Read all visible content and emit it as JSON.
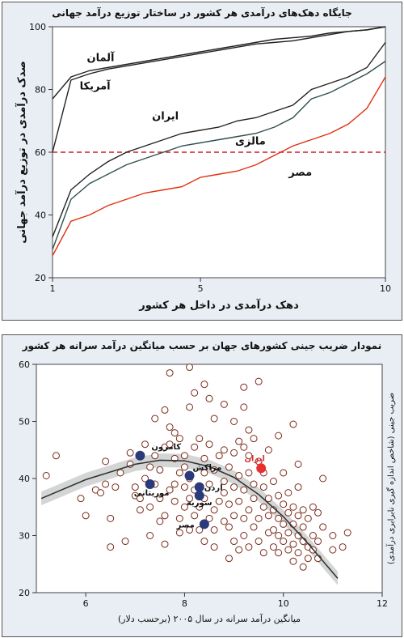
{
  "chart_data": [
    {
      "type": "line",
      "title": "جایگاه دهک‌های درآمدی هر کشور در ساختار توزیع درآمد جهانی",
      "xlabel": "دهک درآمدی در داخل هر کشور",
      "ylabel": "صدک درآمدی در توزیع درآمد جهانی",
      "xlim": [
        1,
        10
      ],
      "ylim": [
        20,
        100
      ],
      "xticks": [
        1,
        5,
        10
      ],
      "yticks": [
        20,
        40,
        60,
        80,
        100
      ],
      "x": [
        1,
        1.5,
        2,
        2.5,
        3,
        3.5,
        4,
        4.5,
        5,
        5.5,
        6,
        6.5,
        7,
        7.5,
        8,
        8.5,
        9,
        9.5,
        10
      ],
      "series": [
        {
          "name": "آلمان",
          "color": "#222222",
          "values": [
            77,
            84,
            86,
            87,
            88,
            89,
            90,
            91,
            92,
            93,
            94,
            95,
            96,
            96.5,
            97,
            98,
            98.5,
            99,
            100
          ]
        },
        {
          "name": "آمریکا",
          "color": "#222222",
          "values": [
            60,
            83,
            85,
            86.5,
            87.5,
            88.5,
            89.5,
            90.5,
            91.5,
            92.5,
            93.5,
            94.5,
            95,
            95.5,
            96.5,
            97.5,
            98.5,
            99,
            100
          ]
        },
        {
          "name": "ایران",
          "color": "#222222",
          "values": [
            33,
            48,
            53,
            57,
            60,
            62,
            64,
            66,
            67,
            68,
            70,
            71,
            73,
            75,
            80,
            82,
            84,
            87,
            95
          ]
        },
        {
          "name": "مالزی",
          "color": "#2f4f4f",
          "values": [
            29,
            45,
            50,
            53,
            56,
            58,
            60,
            62,
            63,
            64,
            65,
            66,
            68,
            71,
            77,
            79,
            82,
            85,
            89
          ]
        },
        {
          "name": "مصر",
          "color": "#e03010",
          "values": [
            27,
            38,
            40,
            43,
            45,
            47,
            48,
            49,
            52,
            53,
            54,
            56,
            59,
            62,
            64,
            66,
            69,
            74,
            84
          ]
        }
      ],
      "reference_line": {
        "y": 60,
        "style": "dashed",
        "color": "#cc2020"
      }
    },
    {
      "type": "scatter",
      "title": "نمودار ضریب جینی کشورهای جهان بر حسب میانگین درآمد سرانه هر کشور",
      "xlabel": "میانگین درآمد سرانه در سال ۲۰۰۵ (برحسب دلار)",
      "ylabel": "ضریب جینی (شاخص اندازه گیری نابرابری درآمدی)",
      "xlim": [
        5,
        12
      ],
      "ylim": [
        20,
        60
      ],
      "xticks": [
        6,
        8,
        10,
        12
      ],
      "yticks": [
        20,
        30,
        40,
        50,
        60
      ],
      "fit_curve": {
        "x": [
          5.1,
          6,
          7,
          7.5,
          8,
          8.5,
          9,
          9.5,
          10,
          10.5,
          11.1
        ],
        "y": [
          36.5,
          39.8,
          42.5,
          43.2,
          43.1,
          42.1,
          40.2,
          37.2,
          33.3,
          28.6,
          22.5
        ]
      },
      "points": [
        [
          5.2,
          40.5
        ],
        [
          5.4,
          44
        ],
        [
          5.9,
          36.5
        ],
        [
          6.0,
          33.5
        ],
        [
          6.2,
          38
        ],
        [
          6.3,
          37.5
        ],
        [
          6.4,
          39
        ],
        [
          6.4,
          43
        ],
        [
          6.5,
          28
        ],
        [
          6.5,
          33
        ],
        [
          6.6,
          38.5
        ],
        [
          6.7,
          41
        ],
        [
          6.8,
          29
        ],
        [
          6.9,
          42.5
        ],
        [
          6.9,
          44.5
        ],
        [
          7.0,
          38.5
        ],
        [
          7.0,
          37
        ],
        [
          7.1,
          36.5
        ],
        [
          7.1,
          34.5
        ],
        [
          7.2,
          40
        ],
        [
          7.2,
          46
        ],
        [
          7.3,
          30
        ],
        [
          7.3,
          35
        ],
        [
          7.3,
          42
        ],
        [
          7.4,
          39
        ],
        [
          7.4,
          44
        ],
        [
          7.4,
          50.5
        ],
        [
          7.5,
          32.5
        ],
        [
          7.5,
          36.5
        ],
        [
          7.5,
          41.5
        ],
        [
          7.6,
          33.5
        ],
        [
          7.6,
          28.5
        ],
        [
          7.6,
          45.5
        ],
        [
          7.6,
          52
        ],
        [
          7.7,
          38
        ],
        [
          7.7,
          46
        ],
        [
          7.7,
          58.5
        ],
        [
          7.8,
          36
        ],
        [
          7.8,
          43.5
        ],
        [
          7.8,
          39
        ],
        [
          7.9,
          30.5
        ],
        [
          7.9,
          41
        ],
        [
          7.9,
          33
        ],
        [
          7.9,
          47
        ],
        [
          8.0,
          35
        ],
        [
          8.0,
          38.5
        ],
        [
          8.0,
          42
        ],
        [
          8.0,
          44
        ],
        [
          8.1,
          31
        ],
        [
          8.1,
          36.5
        ],
        [
          8.1,
          40
        ],
        [
          8.1,
          52.5
        ],
        [
          8.1,
          59.5
        ],
        [
          8.2,
          33.5
        ],
        [
          8.2,
          38
        ],
        [
          8.2,
          45.5
        ],
        [
          8.2,
          55
        ],
        [
          8.3,
          31
        ],
        [
          8.3,
          35
        ],
        [
          8.3,
          47
        ],
        [
          8.4,
          29
        ],
        [
          8.4,
          36.5
        ],
        [
          8.4,
          41
        ],
        [
          8.4,
          43.5
        ],
        [
          8.4,
          56.5
        ],
        [
          8.5,
          33
        ],
        [
          8.5,
          39
        ],
        [
          8.5,
          46
        ],
        [
          8.6,
          28
        ],
        [
          8.6,
          31
        ],
        [
          8.6,
          34.5
        ],
        [
          8.6,
          41.5
        ],
        [
          8.6,
          50.5
        ],
        [
          8.7,
          36
        ],
        [
          8.7,
          44
        ],
        [
          8.8,
          32.5
        ],
        [
          8.8,
          37.5
        ],
        [
          8.8,
          39.5
        ],
        [
          8.8,
          45
        ],
        [
          8.8,
          53
        ],
        [
          8.9,
          26
        ],
        [
          8.9,
          31.5
        ],
        [
          8.9,
          35.5
        ],
        [
          8.9,
          42
        ],
        [
          9.0,
          29
        ],
        [
          9.0,
          33.5
        ],
        [
          9.0,
          38.5
        ],
        [
          9.0,
          44.5
        ],
        [
          9.0,
          50
        ],
        [
          9.1,
          27.5
        ],
        [
          9.1,
          36
        ],
        [
          9.1,
          40.5
        ],
        [
          9.1,
          46.5
        ],
        [
          9.2,
          30
        ],
        [
          9.2,
          33
        ],
        [
          9.2,
          38
        ],
        [
          9.2,
          52.5
        ],
        [
          9.3,
          28
        ],
        [
          9.3,
          34.5
        ],
        [
          9.3,
          41
        ],
        [
          9.3,
          44
        ],
        [
          9.4,
          31.5
        ],
        [
          9.4,
          36.5
        ],
        [
          9.4,
          39
        ],
        [
          9.5,
          29
        ],
        [
          9.5,
          33
        ],
        [
          9.5,
          43
        ],
        [
          9.6,
          27
        ],
        [
          9.6,
          35
        ],
        [
          9.6,
          38.5
        ],
        [
          9.6,
          41
        ],
        [
          9.7,
          30.5
        ],
        [
          9.7,
          33.5
        ],
        [
          9.7,
          36.5
        ],
        [
          9.8,
          28
        ],
        [
          9.8,
          31
        ],
        [
          9.8,
          34.5
        ],
        [
          9.8,
          39.5
        ],
        [
          9.9,
          27
        ],
        [
          9.9,
          30
        ],
        [
          9.9,
          33
        ],
        [
          9.9,
          37
        ],
        [
          10.0,
          29
        ],
        [
          10.0,
          32
        ],
        [
          10.0,
          35.5
        ],
        [
          10.0,
          41
        ],
        [
          10.1,
          27.5
        ],
        [
          10.1,
          30.5
        ],
        [
          10.1,
          34
        ],
        [
          10.1,
          37.5
        ],
        [
          10.2,
          25.5
        ],
        [
          10.2,
          28.5
        ],
        [
          10.2,
          32
        ],
        [
          10.2,
          35
        ],
        [
          10.3,
          27
        ],
        [
          10.3,
          30
        ],
        [
          10.3,
          33.5
        ],
        [
          10.3,
          38.5
        ],
        [
          10.4,
          24.5
        ],
        [
          10.4,
          29
        ],
        [
          10.4,
          31.5
        ],
        [
          10.4,
          34.5
        ],
        [
          10.5,
          26
        ],
        [
          10.5,
          28
        ],
        [
          10.5,
          33
        ],
        [
          10.6,
          27.5
        ],
        [
          10.6,
          30
        ],
        [
          10.6,
          35
        ],
        [
          10.7,
          29
        ],
        [
          10.7,
          26
        ],
        [
          10.8,
          31.5
        ],
        [
          10.8,
          40
        ],
        [
          11.0,
          27.5
        ],
        [
          11.0,
          30
        ],
        [
          11.2,
          28
        ],
        [
          11.3,
          30.5
        ],
        [
          10.3,
          42.5
        ],
        [
          10.2,
          49.5
        ],
        [
          9.5,
          57
        ],
        [
          9.9,
          47.5
        ],
        [
          9.3,
          48.5
        ],
        [
          9.7,
          45
        ],
        [
          9.4,
          47
        ],
        [
          9.2,
          45.5
        ],
        [
          9.2,
          56
        ],
        [
          7.8,
          48
        ],
        [
          7.7,
          49
        ],
        [
          8.5,
          54
        ],
        [
          10.7,
          34
        ]
      ],
      "highlight": [
        {
          "label": "کامرون",
          "x": 7.1,
          "y": 44,
          "color": "#2a3a7a"
        },
        {
          "label": "موریتانی",
          "x": 7.3,
          "y": 39,
          "color": "#2a3a7a"
        },
        {
          "label": "مراکش",
          "x": 8.1,
          "y": 40.5,
          "color": "#2a3a7a"
        },
        {
          "label": "اردن",
          "x": 8.3,
          "y": 38.5,
          "color": "#2a3a7a"
        },
        {
          "label": "سوریه",
          "x": 8.3,
          "y": 37,
          "color": "#2a3a7a"
        },
        {
          "label": "مصر",
          "x": 8.4,
          "y": 32,
          "color": "#2a3a7a"
        },
        {
          "label": "ایران",
          "x": 9.55,
          "y": 41.8,
          "color": "#e83030"
        }
      ]
    }
  ]
}
